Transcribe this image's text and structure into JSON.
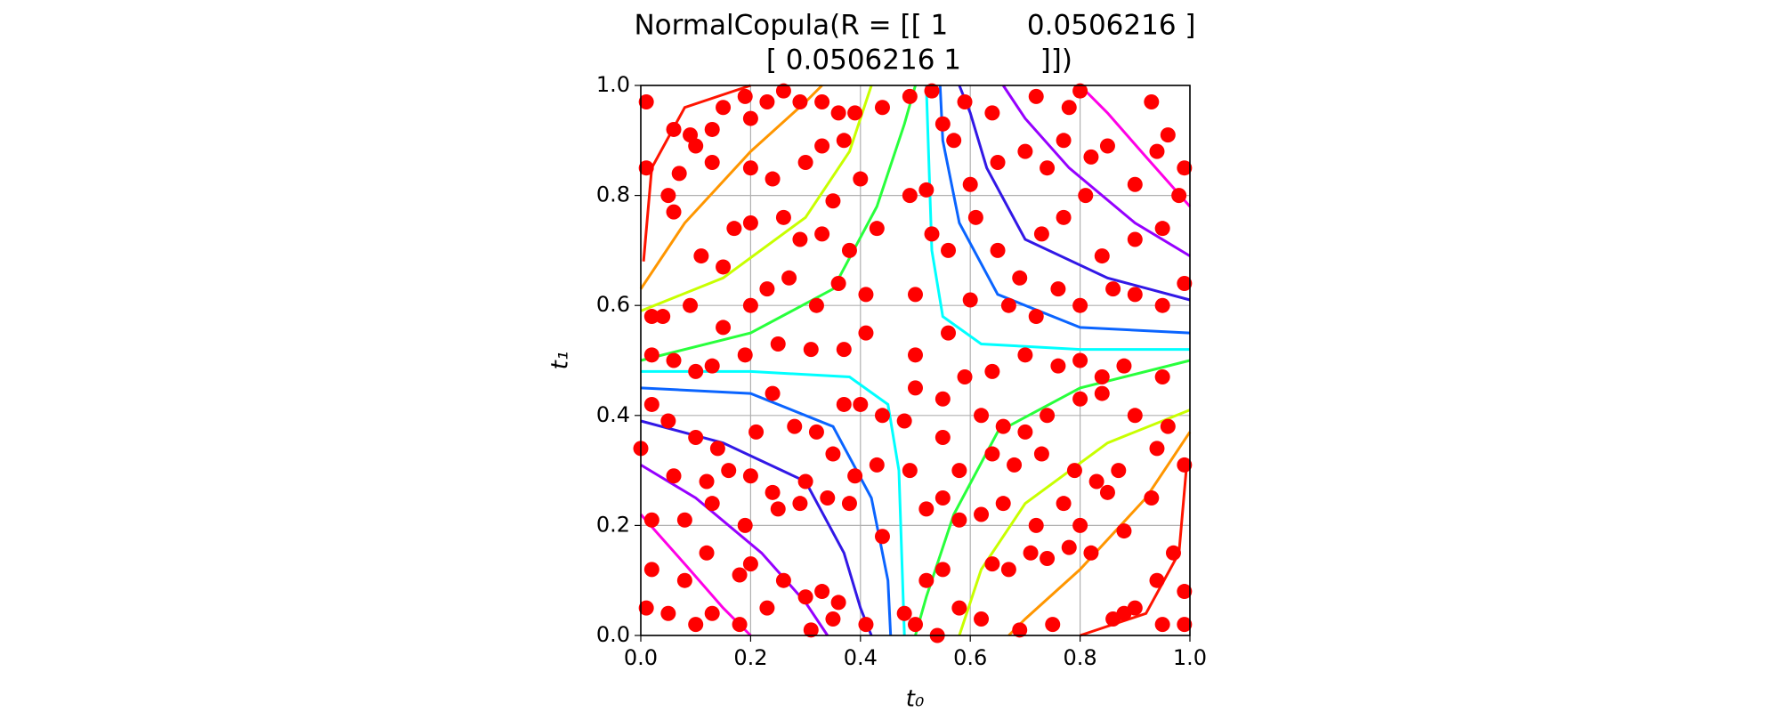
{
  "chart_data": {
    "type": "scatter",
    "title": [
      "NormalCopula(R = [[ 1         0.0506216 ]",
      " [ 0.0506216 1         ]])"
    ],
    "xlabel": "t₀",
    "ylabel": "t₁",
    "xlim": [
      0,
      1
    ],
    "ylim": [
      0,
      1
    ],
    "xticks": [
      {
        "value": 0,
        "label": "0.0"
      },
      0.2,
      0.4,
      0.6,
      0.8,
      {
        "value": 1,
        "label": "1.0"
      }
    ],
    "yticks": [
      {
        "value": 0,
        "label": "0.0"
      },
      0.2,
      0.4,
      0.6,
      0.8,
      {
        "value": 1,
        "label": "1.0"
      }
    ],
    "grid": true,
    "series": [
      {
        "color": "#ff0000",
        "x": [
          0.01,
          0.06,
          0.09,
          0.1,
          0.13,
          0.15,
          0.19,
          0.2,
          0.23,
          0.26,
          0.29,
          0.33,
          0.36,
          0.39,
          0.44,
          0.49,
          0.53,
          0.55,
          0.59,
          0.64,
          0.72,
          0.78,
          0.8,
          0.93,
          0.96,
          0.99,
          0.01,
          0.05,
          0.07,
          0.13,
          0.2,
          0.24,
          0.3,
          0.33,
          0.37,
          0.4,
          0.52,
          0.57,
          0.6,
          0.65,
          0.7,
          0.74,
          0.77,
          0.82,
          0.85,
          0.9,
          0.94,
          0.98,
          0.06,
          0.11,
          0.15,
          0.17,
          0.2,
          0.26,
          0.29,
          0.33,
          0.35,
          0.38,
          0.43,
          0.49,
          0.53,
          0.56,
          0.61,
          0.65,
          0.69,
          0.73,
          0.77,
          0.81,
          0.84,
          0.9,
          0.95,
          0.99,
          0.02,
          0.04,
          0.09,
          0.15,
          0.2,
          0.23,
          0.27,
          0.32,
          0.36,
          0.41,
          0.5,
          0.6,
          0.67,
          0.72,
          0.76,
          0.8,
          0.86,
          0.9,
          0.95,
          0.02,
          0.06,
          0.1,
          0.13,
          0.19,
          0.25,
          0.31,
          0.37,
          0.41,
          0.5,
          0.56,
          0.59,
          0.64,
          0.7,
          0.76,
          0.8,
          0.84,
          0.88,
          0.95,
          0.02,
          0.05,
          0.1,
          0.14,
          0.21,
          0.24,
          0.28,
          0.32,
          0.37,
          0.4,
          0.44,
          0.48,
          0.5,
          0.55,
          0.62,
          0.66,
          0.7,
          0.74,
          0.8,
          0.84,
          0.9,
          0.96,
          0,
          0.06,
          0.12,
          0.16,
          0.2,
          0.24,
          0.3,
          0.35,
          0.39,
          0.43,
          0.49,
          0.55,
          0.58,
          0.64,
          0.68,
          0.73,
          0.79,
          0.83,
          0.87,
          0.94,
          0.99,
          0.02,
          0.08,
          0.13,
          0.19,
          0.25,
          0.29,
          0.34,
          0.38,
          0.44,
          0.52,
          0.55,
          0.58,
          0.62,
          0.66,
          0.72,
          0.77,
          0.8,
          0.85,
          0.88,
          0.93,
          0.02,
          0.08,
          0.12,
          0.18,
          0.2,
          0.26,
          0.3,
          0.33,
          0.36,
          0.41,
          0.48,
          0.52,
          0.55,
          0.58,
          0.64,
          0.67,
          0.71,
          0.74,
          0.78,
          0.82,
          0.86,
          0.9,
          0.94,
          0.97,
          0.99,
          0.01,
          0.05,
          0.1,
          0.13,
          0.18,
          0.23,
          0.31,
          0.35,
          0.5,
          0.54,
          0.62,
          0.69,
          0.75,
          0.88,
          0.95,
          0.99
        ],
        "values": [
          0.97,
          0.92,
          0.91,
          0.89,
          0.92,
          0.96,
          0.98,
          0.94,
          0.97,
          0.99,
          0.97,
          0.97,
          0.95,
          0.95,
          0.96,
          0.98,
          0.99,
          0.93,
          0.97,
          0.95,
          0.98,
          0.96,
          0.99,
          0.97,
          0.91,
          0.85,
          0.85,
          0.8,
          0.84,
          0.86,
          0.85,
          0.83,
          0.86,
          0.89,
          0.9,
          0.83,
          0.81,
          0.9,
          0.82,
          0.86,
          0.88,
          0.85,
          0.9,
          0.87,
          0.89,
          0.82,
          0.88,
          0.8,
          0.77,
          0.69,
          0.67,
          0.74,
          0.75,
          0.76,
          0.72,
          0.73,
          0.79,
          0.7,
          0.74,
          0.8,
          0.73,
          0.7,
          0.76,
          0.7,
          0.65,
          0.73,
          0.76,
          0.8,
          0.69,
          0.72,
          0.74,
          0.64,
          0.58,
          0.58,
          0.6,
          0.56,
          0.6,
          0.63,
          0.65,
          0.6,
          0.64,
          0.62,
          0.62,
          0.61,
          0.6,
          0.58,
          0.63,
          0.6,
          0.63,
          0.62,
          0.6,
          0.51,
          0.5,
          0.48,
          0.49,
          0.51,
          0.53,
          0.52,
          0.52,
          0.55,
          0.51,
          0.55,
          0.47,
          0.48,
          0.51,
          0.49,
          0.5,
          0.47,
          0.49,
          0.47,
          0.42,
          0.39,
          0.36,
          0.34,
          0.37,
          0.44,
          0.38,
          0.37,
          0.42,
          0.42,
          0.4,
          0.39,
          0.45,
          0.43,
          0.4,
          0.38,
          0.37,
          0.4,
          0.43,
          0.44,
          0.4,
          0.38,
          0.34,
          0.29,
          0.28,
          0.3,
          0.29,
          0.26,
          0.28,
          0.33,
          0.29,
          0.31,
          0.3,
          0.36,
          0.3,
          0.33,
          0.31,
          0.33,
          0.3,
          0.28,
          0.3,
          0.34,
          0.31,
          0.21,
          0.21,
          0.24,
          0.2,
          0.23,
          0.24,
          0.25,
          0.24,
          0.18,
          0.23,
          0.25,
          0.21,
          0.22,
          0.24,
          0.2,
          0.24,
          0.2,
          0.26,
          0.19,
          0.25,
          0.12,
          0.1,
          0.15,
          0.11,
          0.13,
          0.1,
          0.07,
          0.08,
          0.06,
          0.02,
          0.04,
          0.1,
          0.12,
          0.05,
          0.13,
          0.12,
          0.15,
          0.14,
          0.16,
          0.15,
          0.03,
          0.05,
          0.1,
          0.15,
          0.08,
          0.05,
          0.04,
          0.02,
          0.04,
          0.02,
          0.05,
          0.01,
          0.03,
          0.02,
          0,
          0.03,
          0.01,
          0.02,
          0.04,
          0.02,
          0.02
        ]
      }
    ],
    "contours": [
      {
        "color": "#ff1400",
        "x": [
          0.005,
          0.02,
          0.08,
          0.2,
          null,
          0.995,
          0.98,
          0.92,
          0.8
        ],
        "values": [
          0.68,
          0.85,
          0.96,
          1,
          null,
          0.32,
          0.15,
          0.04,
          0
        ]
      },
      {
        "color": "#ff9600",
        "x": [
          0,
          0.08,
          0.2,
          0.3,
          0.33,
          null,
          1,
          0.92,
          0.8,
          0.7,
          0.67
        ],
        "values": [
          0.63,
          0.75,
          0.88,
          0.97,
          1,
          null,
          0.37,
          0.25,
          0.12,
          0.03,
          0
        ]
      },
      {
        "color": "#c8ff00",
        "x": [
          0,
          0.15,
          0.3,
          0.38,
          0.42,
          null,
          1,
          0.85,
          0.7,
          0.62,
          0.58
        ],
        "values": [
          0.59,
          0.65,
          0.76,
          0.88,
          1,
          null,
          0.41,
          0.35,
          0.24,
          0.12,
          0
        ]
      },
      {
        "color": "#28ff3c",
        "x": [
          0,
          0.2,
          0.35,
          0.43,
          0.48,
          0.5,
          null,
          1,
          0.8,
          0.65,
          0.57,
          0.52,
          0.5
        ],
        "values": [
          0.5,
          0.55,
          0.63,
          0.78,
          0.93,
          1,
          null,
          0.5,
          0.45,
          0.37,
          0.22,
          0.07,
          0
        ]
      },
      {
        "color": "#00ffff",
        "x": [
          0,
          0.2,
          0.38,
          0.45,
          0.47,
          0.48,
          null,
          1,
          0.8,
          0.62,
          0.55,
          0.53,
          0.52
        ],
        "values": [
          0.48,
          0.48,
          0.47,
          0.42,
          0.3,
          0,
          null,
          0.52,
          0.52,
          0.53,
          0.58,
          0.7,
          1
        ]
      },
      {
        "color": "#0a64ff",
        "x": [
          0,
          0.2,
          0.35,
          0.42,
          0.45,
          0.455,
          null,
          1,
          0.8,
          0.65,
          0.58,
          0.55,
          0.545
        ],
        "values": [
          0.45,
          0.44,
          0.38,
          0.25,
          0.1,
          0,
          null,
          0.55,
          0.56,
          0.62,
          0.75,
          0.9,
          1
        ]
      },
      {
        "color": "#3218e6",
        "x": [
          0,
          0.15,
          0.3,
          0.37,
          0.4,
          0.42,
          null,
          1,
          0.85,
          0.7,
          0.63,
          0.6,
          0.58
        ],
        "values": [
          0.39,
          0.35,
          0.28,
          0.15,
          0.05,
          0,
          null,
          0.61,
          0.65,
          0.72,
          0.85,
          0.95,
          1
        ]
      },
      {
        "color": "#9600ff",
        "x": [
          0,
          0.1,
          0.22,
          0.3,
          0.34,
          null,
          1,
          0.9,
          0.78,
          0.7,
          0.66
        ],
        "values": [
          0.31,
          0.25,
          0.15,
          0.06,
          0,
          null,
          0.69,
          0.75,
          0.85,
          0.94,
          1
        ]
      },
      {
        "color": "#ff00e6",
        "x": [
          0,
          0.08,
          0.15,
          0.2,
          null,
          1,
          0.92,
          0.85,
          0.8
        ],
        "values": [
          0.22,
          0.13,
          0.05,
          0,
          null,
          0.78,
          0.87,
          0.95,
          1
        ]
      }
    ]
  }
}
